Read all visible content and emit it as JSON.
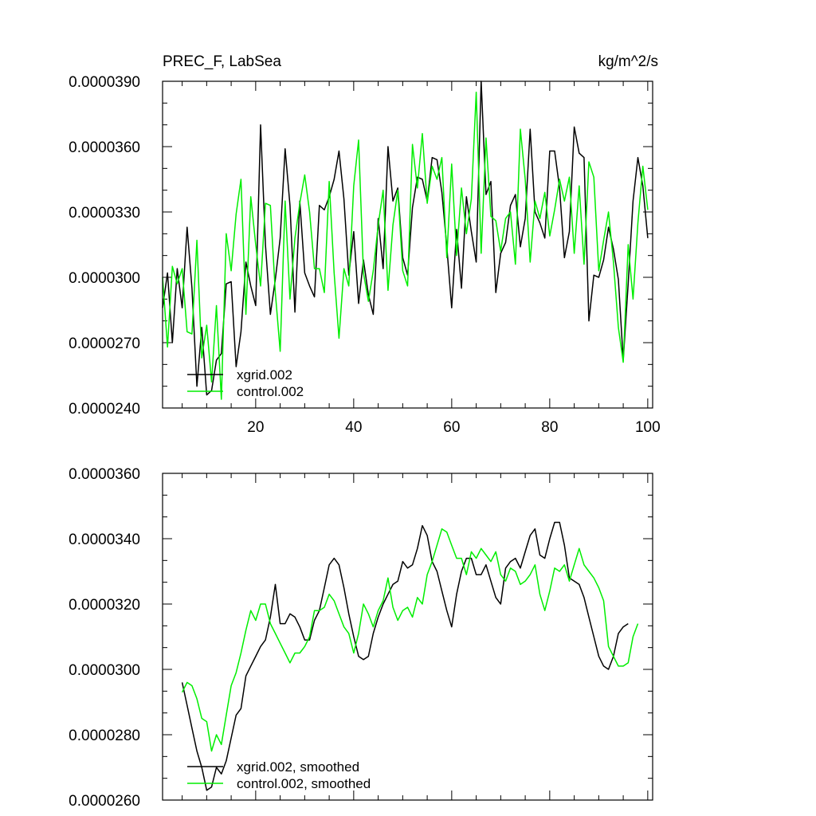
{
  "chart_data": [
    {
      "type": "line",
      "title_left": "PREC_F, LabSea",
      "title_right": "kg/m^2/s",
      "xlim": [
        1,
        101
      ],
      "ylim": [
        2.4e-05,
        3.9e-05
      ],
      "x_tick_values": [
        20,
        40,
        60,
        80,
        100
      ],
      "x_tick_labels": [
        "20",
        "40",
        "60",
        "80",
        "100"
      ],
      "y_tick_values": [
        2.4e-05,
        2.7e-05,
        3e-05,
        3.3e-05,
        3.6e-05,
        3.9e-05
      ],
      "y_tick_labels": [
        "0.0000240",
        "0.0000270",
        "0.0000300",
        "0.0000330",
        "0.0000360",
        "0.0000390"
      ],
      "legend_position": "bottom-left",
      "x_start": 1,
      "series": [
        {
          "name": "xgrid.002",
          "color": "#000000",
          "values": [
            2.86e-05,
            3.02e-05,
            2.7e-05,
            3.04e-05,
            2.86e-05,
            3.23e-05,
            2.95e-05,
            2.5e-05,
            2.77e-05,
            2.46e-05,
            2.48e-05,
            2.62e-05,
            2.65e-05,
            2.97e-05,
            2.98e-05,
            2.59e-05,
            2.75e-05,
            3.07e-05,
            2.96e-05,
            2.87e-05,
            3.7e-05,
            3.15e-05,
            2.83e-05,
            2.99e-05,
            3.18e-05,
            3.59e-05,
            3.33e-05,
            2.84e-05,
            3.35e-05,
            3.02e-05,
            2.96e-05,
            2.91e-05,
            3.33e-05,
            3.31e-05,
            3.37e-05,
            3.45e-05,
            3.58e-05,
            3.36e-05,
            3.01e-05,
            3.21e-05,
            2.88e-05,
            3.08e-05,
            2.92e-05,
            2.83e-05,
            3.27e-05,
            3.04e-05,
            3.6e-05,
            3.35e-05,
            3.41e-05,
            3.09e-05,
            3.01e-05,
            3.32e-05,
            3.46e-05,
            3.45e-05,
            3.35e-05,
            3.55e-05,
            3.54e-05,
            3.39e-05,
            3.14e-05,
            2.86e-05,
            3.22e-05,
            2.95e-05,
            3.37e-05,
            3.21e-05,
            3.07e-05,
            3.9e-05,
            3.38e-05,
            3.44e-05,
            2.93e-05,
            3.11e-05,
            3.16e-05,
            3.33e-05,
            3.38e-05,
            3.14e-05,
            3.27e-05,
            3.68e-05,
            3.3e-05,
            3.25e-05,
            3.18e-05,
            3.58e-05,
            3.58e-05,
            3.41e-05,
            3.09e-05,
            3.21e-05,
            3.69e-05,
            3.57e-05,
            3.55e-05,
            2.8e-05,
            3.01e-05,
            3e-05,
            3.08e-05,
            3.23e-05,
            3.13e-05,
            2.99e-05,
            2.62e-05,
            2.97e-05,
            3.35e-05,
            3.55e-05,
            3.42e-05,
            3.18e-05
          ]
        },
        {
          "name": "control.002",
          "color": "#00ee00",
          "values": [
            3e-05,
            2.68e-05,
            3.05e-05,
            2.97e-05,
            3.04e-05,
            2.75e-05,
            2.74e-05,
            3.17e-05,
            2.63e-05,
            2.78e-05,
            2.52e-05,
            2.87e-05,
            2.44e-05,
            3.2e-05,
            3.03e-05,
            3.29e-05,
            3.45e-05,
            2.83e-05,
            3.37e-05,
            3.15e-05,
            2.96e-05,
            3.34e-05,
            3.33e-05,
            2.93e-05,
            2.66e-05,
            3.35e-05,
            2.9e-05,
            3.18e-05,
            3.34e-05,
            3.47e-05,
            3.3e-05,
            3.04e-05,
            3.04e-05,
            2.93e-05,
            3.44e-05,
            3.02e-05,
            2.72e-05,
            3.04e-05,
            2.96e-05,
            3.42e-05,
            3.63e-05,
            3.02e-05,
            2.89e-05,
            3.03e-05,
            3.24e-05,
            3.4e-05,
            2.94e-05,
            3.24e-05,
            3.4e-05,
            3.03e-05,
            2.96e-05,
            3.61e-05,
            3.41e-05,
            3.66e-05,
            3.34e-05,
            3.51e-05,
            3.45e-05,
            3.55e-05,
            3.09e-05,
            3.52e-05,
            3.1e-05,
            3.41e-05,
            3.2e-05,
            3.36e-05,
            3.85e-05,
            3.11e-05,
            3.64e-05,
            3.28e-05,
            3.26e-05,
            3.12e-05,
            3.27e-05,
            3.3e-05,
            3.06e-05,
            3.68e-05,
            3.45e-05,
            3.07e-05,
            3.35e-05,
            3.27e-05,
            3.39e-05,
            3.19e-05,
            3.31e-05,
            3.45e-05,
            3.35e-05,
            3.46e-05,
            3.11e-05,
            3.42e-05,
            3.06e-05,
            3.53e-05,
            3.46e-05,
            3.03e-05,
            3.17e-05,
            3.3e-05,
            3.07e-05,
            2.77e-05,
            2.61e-05,
            3.15e-05,
            2.9e-05,
            3.25e-05,
            3.51e-05,
            3.31e-05
          ]
        }
      ]
    },
    {
      "type": "line",
      "xlim": [
        1,
        101
      ],
      "ylim": [
        2.6e-05,
        3.6e-05
      ],
      "x_tick_values": [
        20,
        40,
        60,
        80,
        100
      ],
      "y_tick_values": [
        2.6e-05,
        2.8e-05,
        3e-05,
        3.2e-05,
        3.4e-05,
        3.6e-05
      ],
      "y_tick_labels": [
        "0.0000260",
        "0.0000280",
        "0.0000300",
        "0.0000320",
        "0.0000340",
        "0.0000360"
      ],
      "legend_position": "bottom-left",
      "x_start": 5,
      "series": [
        {
          "name": "xgrid.002, smoothed",
          "color": "#000000",
          "values": [
            2.96e-05,
            2.89e-05,
            2.82e-05,
            2.75e-05,
            2.7e-05,
            2.63e-05,
            2.64e-05,
            2.7e-05,
            2.68e-05,
            2.72e-05,
            2.79e-05,
            2.86e-05,
            2.88e-05,
            2.98e-05,
            3.01e-05,
            3.04e-05,
            3.07e-05,
            3.09e-05,
            3.16e-05,
            3.26e-05,
            3.14e-05,
            3.14e-05,
            3.17e-05,
            3.16e-05,
            3.13e-05,
            3.09e-05,
            3.09e-05,
            3.15e-05,
            3.18e-05,
            3.25e-05,
            3.32e-05,
            3.34e-05,
            3.32e-05,
            3.25e-05,
            3.17e-05,
            3.1e-05,
            3.04e-05,
            3.03e-05,
            3.04e-05,
            3.11e-05,
            3.16e-05,
            3.2e-05,
            3.23e-05,
            3.26e-05,
            3.27e-05,
            3.33e-05,
            3.31e-05,
            3.32e-05,
            3.37e-05,
            3.44e-05,
            3.41e-05,
            3.33e-05,
            3.3e-05,
            3.24e-05,
            3.18e-05,
            3.13e-05,
            3.23e-05,
            3.3e-05,
            3.34e-05,
            3.34e-05,
            3.29e-05,
            3.29e-05,
            3.32e-05,
            3.27e-05,
            3.22e-05,
            3.2e-05,
            3.31e-05,
            3.33e-05,
            3.34e-05,
            3.31e-05,
            3.36e-05,
            3.41e-05,
            3.43e-05,
            3.35e-05,
            3.34e-05,
            3.4e-05,
            3.45e-05,
            3.45e-05,
            3.38e-05,
            3.28e-05,
            3.27e-05,
            3.26e-05,
            3.22e-05,
            3.16e-05,
            3.1e-05,
            3.04e-05,
            3.01e-05,
            3e-05,
            3.04e-05,
            3.11e-05,
            3.13e-05,
            3.14e-05
          ]
        },
        {
          "name": "control.002, smoothed",
          "color": "#00ee00",
          "values": [
            2.93e-05,
            2.96e-05,
            2.95e-05,
            2.91e-05,
            2.85e-05,
            2.84e-05,
            2.75e-05,
            2.8e-05,
            2.77e-05,
            2.86e-05,
            2.95e-05,
            2.99e-05,
            3.05e-05,
            3.12e-05,
            3.18e-05,
            3.15e-05,
            3.2e-05,
            3.2e-05,
            3.14e-05,
            3.11e-05,
            3.08e-05,
            3.05e-05,
            3.02e-05,
            3.05e-05,
            3.05e-05,
            3.07e-05,
            3.1e-05,
            3.18e-05,
            3.18e-05,
            3.19e-05,
            3.23e-05,
            3.21e-05,
            3.17e-05,
            3.13e-05,
            3.11e-05,
            3.05e-05,
            3.11e-05,
            3.2e-05,
            3.17e-05,
            3.13e-05,
            3.18e-05,
            3.21e-05,
            3.28e-05,
            3.19e-05,
            3.15e-05,
            3.18e-05,
            3.19e-05,
            3.16e-05,
            3.22e-05,
            3.2e-05,
            3.29e-05,
            3.33e-05,
            3.38e-05,
            3.43e-05,
            3.42e-05,
            3.38e-05,
            3.34e-05,
            3.34e-05,
            3.29e-05,
            3.36e-05,
            3.34e-05,
            3.37e-05,
            3.35e-05,
            3.33e-05,
            3.36e-05,
            3.29e-05,
            3.27e-05,
            3.31e-05,
            3.3e-05,
            3.26e-05,
            3.27e-05,
            3.29e-05,
            3.32e-05,
            3.23e-05,
            3.18e-05,
            3.24e-05,
            3.31e-05,
            3.3e-05,
            3.32e-05,
            3.27e-05,
            3.32e-05,
            3.37e-05,
            3.32e-05,
            3.3e-05,
            3.28e-05,
            3.25e-05,
            3.21e-05,
            3.07e-05,
            3.04e-05,
            3.01e-05,
            3.01e-05,
            3.02e-05,
            3.1e-05,
            3.14e-05
          ]
        }
      ]
    }
  ]
}
